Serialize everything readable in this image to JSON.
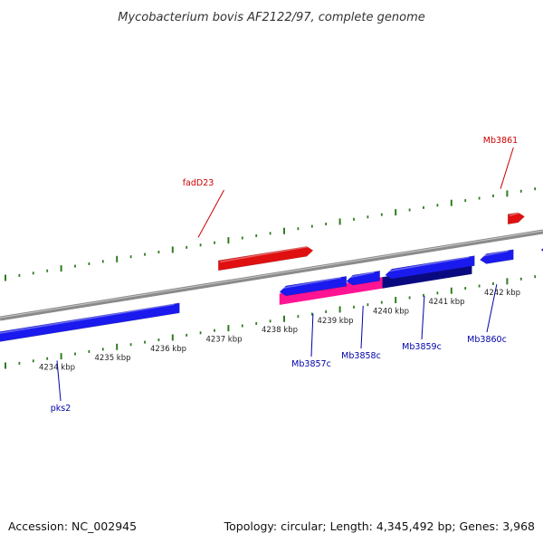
{
  "title": "Mycobacterium bovis AF2122/97, complete genome",
  "footer": {
    "accession": "Accession: NC_002945",
    "summary": "Topology: circular; Length: 4,345,492 bp; Genes: 3,968"
  },
  "colors": {
    "backbone": "#8a8a8a",
    "tick": "#2e7d1e",
    "forward_label": "#cc0000",
    "reverse_label": "#0000aa",
    "red": "#e01010",
    "blue": "#1a1aee",
    "pink": "#ff1493",
    "navy": "#0a0a80"
  },
  "scale_labels": [
    {
      "text": "4234 kbp",
      "kbp": 4234
    },
    {
      "text": "4235 kbp",
      "kbp": 4235
    },
    {
      "text": "4236 kbp",
      "kbp": 4236
    },
    {
      "text": "4237 kbp",
      "kbp": 4237
    },
    {
      "text": "4238 kbp",
      "kbp": 4238
    },
    {
      "text": "4239 kbp",
      "kbp": 4239
    },
    {
      "text": "4240 kbp",
      "kbp": 4240
    },
    {
      "text": "4241 kbp",
      "kbp": 4241
    },
    {
      "text": "4242 kbp",
      "kbp": 4242
    }
  ],
  "genes": [
    {
      "id": "fadD23",
      "label": "fadD23",
      "strand": "+",
      "start_kbp": 4236.9,
      "end_kbp": 4238.6,
      "color": "red",
      "label_at_kbp": 4237.0
    },
    {
      "id": "mb3861",
      "label": "Mb3861",
      "strand": "+",
      "start_kbp": 4242.1,
      "end_kbp": 4242.4,
      "color": "red",
      "label_at_kbp": 4242.2
    },
    {
      "id": "blue-long",
      "label": "",
      "strand": "-",
      "start_kbp": 4232.5,
      "end_kbp": 4236.2,
      "color": "blue"
    },
    {
      "id": "pks2",
      "label": "pks2",
      "strand": "-",
      "start_kbp": 4232.5,
      "end_kbp": 4236.2,
      "color": "blue",
      "label_only": true,
      "label_at_kbp": 4234.0
    },
    {
      "id": "mb3857c",
      "label": "Mb3857c",
      "strand": "-",
      "start_kbp": 4238.0,
      "end_kbp": 4239.2,
      "color": "blue",
      "label_at_kbp": 4238.6
    },
    {
      "id": "mb3858c",
      "label": "Mb3858c",
      "strand": "-",
      "start_kbp": 4239.2,
      "end_kbp": 4239.8,
      "color": "blue",
      "label_at_kbp": 4239.5
    },
    {
      "id": "mb3859c",
      "label": "Mb3859c",
      "strand": "-",
      "start_kbp": 4239.9,
      "end_kbp": 4241.5,
      "color": "blue",
      "label_at_kbp": 4240.6
    },
    {
      "id": "mb3860c",
      "label": "Mb3860c",
      "strand": "-",
      "start_kbp": 4241.6,
      "end_kbp": 4242.2,
      "color": "blue",
      "label_at_kbp": 4241.9
    },
    {
      "id": "edge-right",
      "label": "",
      "strand": "-",
      "start_kbp": 4242.7,
      "end_kbp": 4243.5,
      "color": "blue"
    }
  ],
  "features": [
    {
      "id": "pink-feature",
      "start_kbp": 4238.0,
      "end_kbp": 4239.85,
      "color": "pink"
    },
    {
      "id": "navy-feature",
      "start_kbp": 4239.85,
      "end_kbp": 4241.45,
      "color": "navy"
    }
  ]
}
